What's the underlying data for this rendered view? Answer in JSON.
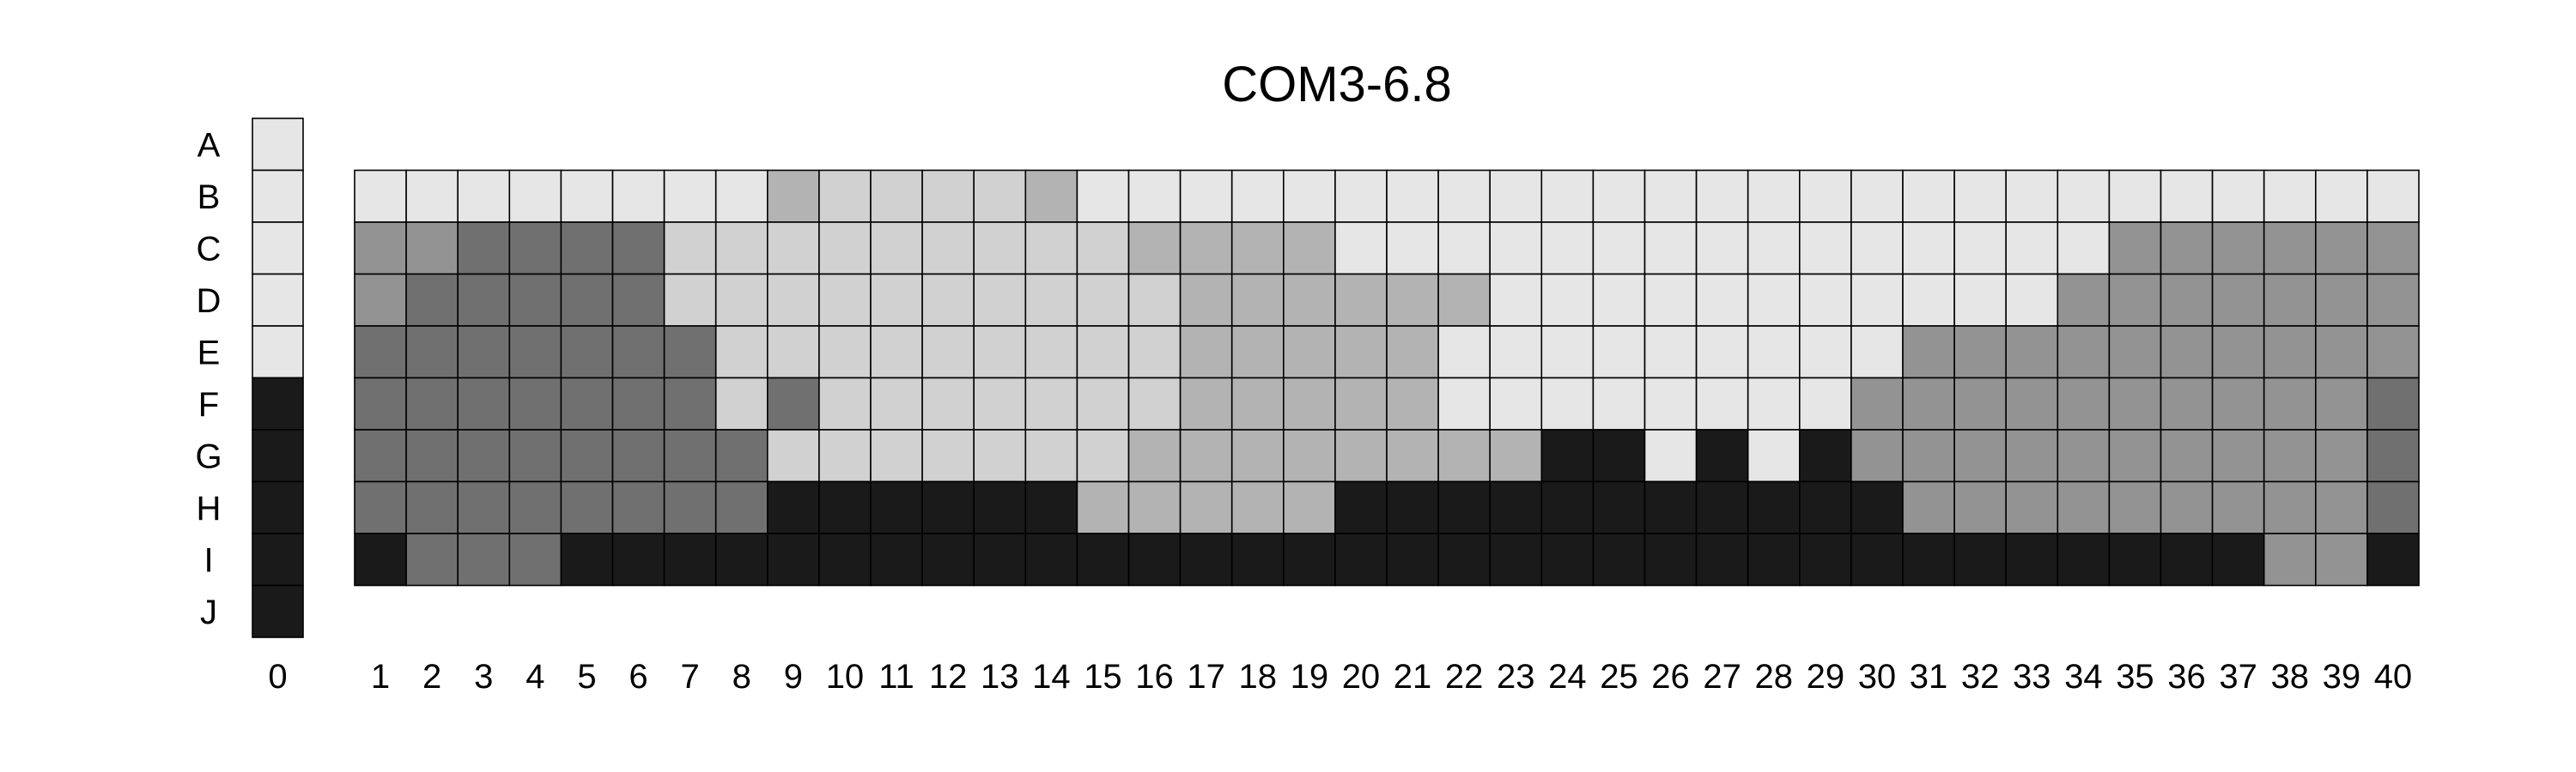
{
  "chart_data": {
    "type": "heatmap",
    "title": "COM3-6.8",
    "xlabel": "",
    "ylabel": "",
    "grid": true,
    "legend": "none",
    "row_labels": [
      "A",
      "B",
      "C",
      "D",
      "E",
      "F",
      "G",
      "H",
      "I",
      "J"
    ],
    "column_labels": [
      "0",
      "1",
      "2",
      "3",
      "4",
      "5",
      "6",
      "7",
      "8",
      "9",
      "10",
      "11",
      "12",
      "13",
      "14",
      "15",
      "16",
      "17",
      "18",
      "19",
      "20",
      "21",
      "22",
      "23",
      "24",
      "25",
      "26",
      "27",
      "28",
      "29",
      "30",
      "31",
      "32",
      "33",
      "34",
      "35",
      "36",
      "37",
      "38",
      "39",
      "40"
    ],
    "level_colors": {
      "0": "#1a1a1a",
      "1": "#707070",
      "2": "#939393",
      "3": "#b3b3b3",
      "4": "#d1d1d1",
      "5": "#e6e6e6"
    },
    "reference_column": {
      "label": "0",
      "rows": [
        "A",
        "B",
        "C",
        "D",
        "E",
        "F",
        "G",
        "H",
        "I",
        "J"
      ],
      "values": [
        5,
        5,
        5,
        5,
        5,
        0,
        0,
        0,
        0,
        0
      ]
    },
    "grid_columns": {
      "rows": [
        "B",
        "C",
        "D",
        "E",
        "F",
        "G",
        "H",
        "I"
      ],
      "values": [
        [
          5,
          5,
          5,
          5,
          5,
          5,
          5,
          5,
          3,
          4,
          4,
          4,
          4,
          3,
          5,
          5,
          5,
          5,
          5,
          5,
          5,
          5,
          5,
          5,
          5,
          5,
          5,
          5,
          5,
          5,
          5,
          5,
          5,
          5,
          5,
          5,
          5,
          5,
          5,
          5
        ],
        [
          2,
          2,
          1,
          1,
          1,
          1,
          4,
          4,
          4,
          4,
          4,
          4,
          4,
          4,
          4,
          3,
          3,
          3,
          3,
          5,
          5,
          5,
          5,
          5,
          5,
          5,
          5,
          5,
          5,
          5,
          5,
          5,
          5,
          5,
          2,
          2,
          2,
          2,
          2,
          2
        ],
        [
          2,
          1,
          1,
          1,
          1,
          1,
          4,
          4,
          4,
          4,
          4,
          4,
          4,
          4,
          4,
          4,
          3,
          3,
          3,
          3,
          3,
          3,
          5,
          5,
          5,
          5,
          5,
          5,
          5,
          5,
          5,
          5,
          5,
          2,
          2,
          2,
          2,
          2,
          2,
          2
        ],
        [
          1,
          1,
          1,
          1,
          1,
          1,
          1,
          4,
          4,
          4,
          4,
          4,
          4,
          4,
          4,
          4,
          3,
          3,
          3,
          3,
          3,
          5,
          5,
          5,
          5,
          5,
          5,
          5,
          5,
          5,
          2,
          2,
          2,
          2,
          2,
          2,
          2,
          2,
          2,
          2
        ],
        [
          1,
          1,
          1,
          1,
          1,
          1,
          1,
          4,
          1,
          4,
          4,
          4,
          4,
          4,
          4,
          4,
          3,
          3,
          3,
          3,
          3,
          5,
          5,
          5,
          5,
          5,
          5,
          5,
          5,
          2,
          2,
          2,
          2,
          2,
          2,
          2,
          2,
          2,
          2,
          1
        ],
        [
          1,
          1,
          1,
          1,
          1,
          1,
          1,
          1,
          4,
          4,
          4,
          4,
          4,
          4,
          4,
          3,
          3,
          3,
          3,
          3,
          3,
          3,
          3,
          0,
          0,
          5,
          0,
          5,
          0,
          2,
          2,
          2,
          2,
          2,
          2,
          2,
          2,
          2,
          2,
          1
        ],
        [
          1,
          1,
          1,
          1,
          1,
          1,
          1,
          1,
          0,
          0,
          0,
          0,
          0,
          0,
          3,
          3,
          3,
          3,
          3,
          0,
          0,
          0,
          0,
          0,
          0,
          0,
          0,
          0,
          0,
          0,
          2,
          2,
          2,
          2,
          2,
          2,
          2,
          2,
          2,
          1
        ],
        [
          0,
          1,
          1,
          1,
          0,
          0,
          0,
          0,
          0,
          0,
          0,
          0,
          0,
          0,
          0,
          0,
          0,
          0,
          0,
          0,
          0,
          0,
          0,
          0,
          0,
          0,
          0,
          0,
          0,
          0,
          0,
          0,
          0,
          0,
          0,
          0,
          0,
          2,
          2,
          0
        ]
      ]
    }
  }
}
